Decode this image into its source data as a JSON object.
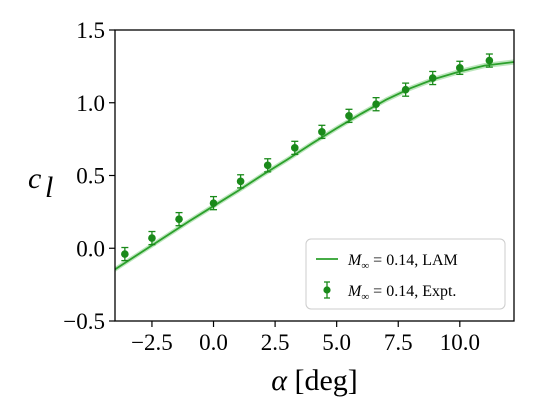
{
  "chart_data": {
    "type": "line",
    "title": "",
    "xlabel": "α [deg]",
    "ylabel": "c_l",
    "xlim": [
      -4.0,
      12.2
    ],
    "ylim": [
      -0.5,
      1.5
    ],
    "xticks": [
      -2.5,
      0.0,
      2.5,
      5.0,
      7.5,
      10.0
    ],
    "xtick_labels": [
      "−2.5",
      "0.0",
      "2.5",
      "5.0",
      "7.5",
      "10.0"
    ],
    "yticks": [
      -0.5,
      0.0,
      0.5,
      1.0,
      1.5
    ],
    "ytick_labels": [
      "−0.5",
      "0.0",
      "0.5",
      "1.0",
      "1.5"
    ],
    "grid": false,
    "legend_position": "lower-right",
    "colors": {
      "series": "#2ca02c",
      "points": "#1a8a1a",
      "band": "#b5e3b5"
    },
    "series": [
      {
        "name": "M∞ = 0.14, LAM",
        "kind": "line-with-band",
        "x": [
          -4.0,
          -3.0,
          -2.0,
          -1.0,
          0.0,
          1.0,
          2.0,
          3.0,
          4.0,
          5.0,
          6.0,
          7.0,
          8.0,
          9.0,
          10.0,
          11.0,
          12.2
        ],
        "y": [
          -0.145,
          -0.035,
          0.075,
          0.185,
          0.29,
          0.395,
          0.505,
          0.61,
          0.72,
          0.825,
          0.925,
          1.02,
          1.1,
          1.165,
          1.215,
          1.255,
          1.28
        ],
        "band_halfwidth": 0.018
      },
      {
        "name": "M∞ = 0.14, Expt.",
        "kind": "points-with-errorbars",
        "x": [
          -3.6,
          -2.5,
          -1.4,
          0.0,
          1.1,
          2.2,
          3.3,
          4.4,
          5.5,
          6.6,
          7.8,
          8.9,
          10.0,
          11.2
        ],
        "y": [
          -0.04,
          0.07,
          0.2,
          0.31,
          0.46,
          0.57,
          0.69,
          0.8,
          0.91,
          0.99,
          1.09,
          1.17,
          1.24,
          1.29
        ],
        "yerr": 0.045
      }
    ],
    "legend": [
      {
        "prefix": "M",
        "sub": "∞",
        "rest": " = 0.14, LAM",
        "marker": "line"
      },
      {
        "prefix": "M",
        "sub": "∞",
        "rest": " = 0.14, Expt.",
        "marker": "errorbar-point"
      }
    ]
  }
}
